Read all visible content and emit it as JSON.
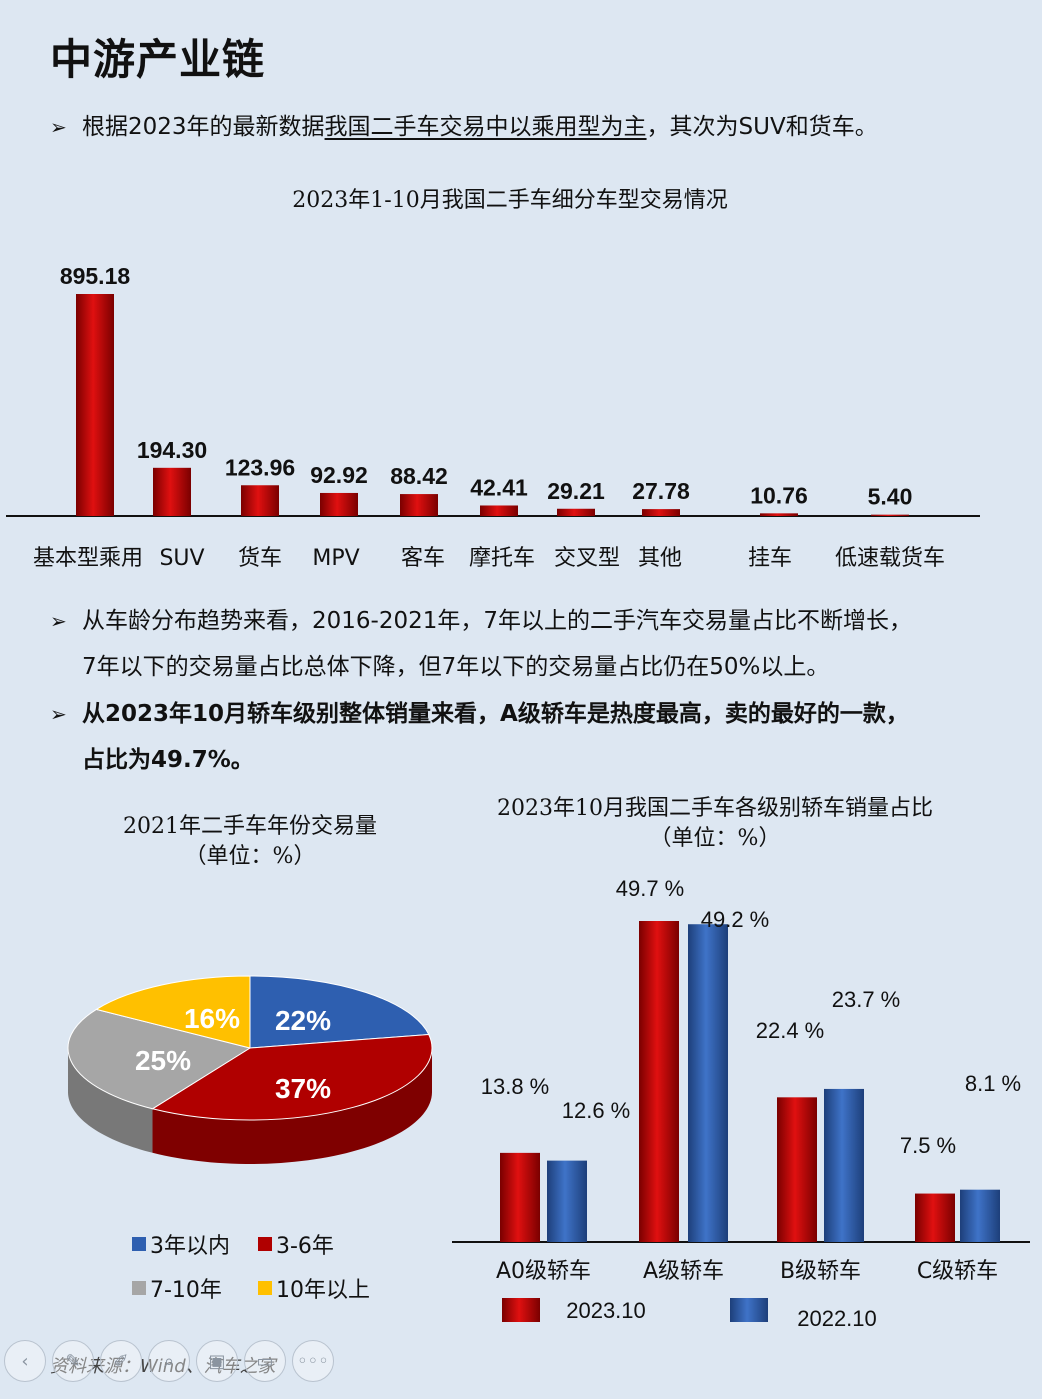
{
  "page": {
    "title": "中游产业链"
  },
  "bullets": {
    "b1": {
      "pre": "根据2023年的最新数据",
      "underline": "我国二手车交易中以乘用型为主",
      "post": "，其次为SUV和货车。"
    },
    "b2": {
      "line1": "从车龄分布趋势来看，2016-2021年，7年以上的二手汽车交易量占比不断增长，",
      "line2": "7年以下的交易量占比总体下降，但7年以下的交易量占比仍在50%以上。"
    },
    "b3": {
      "line1": "从2023年10月轿车级别整体销量来看，A级轿车是热度最高，卖的最好的一款，",
      "line2": "占比为49.7%。"
    }
  },
  "arrow_symbol": "➢",
  "charts": {
    "bar_title": "2023年1-10月我国二手车细分车型交易情况",
    "pie_title": "2021年二手车年份交易量",
    "pie_subtitle": "（单位：%）",
    "group_title": "2023年10月我国二手车各级别轿车销量占比",
    "group_subtitle": "（单位：%）"
  },
  "chart_data": [
    {
      "type": "bar",
      "title": "2023年1-10月我国二手车细分车型交易情况",
      "categories": [
        "基本型乘用",
        "SUV",
        "货车",
        "MPV",
        "客车",
        "摩托车",
        "交叉型",
        "其他",
        "挂车",
        "低速载货车"
      ],
      "values": [
        895.18,
        194.3,
        123.96,
        92.92,
        88.42,
        42.41,
        29.21,
        27.78,
        10.76,
        5.4
      ],
      "value_labels": [
        "895.18",
        "194.30",
        "123.96",
        "92.92",
        "88.42",
        "42.41",
        "29.21",
        "27.78",
        "10.76",
        "5.40"
      ],
      "color": "#c00000"
    },
    {
      "type": "pie",
      "title": "2021年二手车年份交易量",
      "subtitle": "（单位：%）",
      "slices": [
        {
          "label": "3年以内",
          "value": 22,
          "value_label": "22%",
          "color": "#2e5fb0"
        },
        {
          "label": "3-6年",
          "value": 37,
          "value_label": "37%",
          "color": "#b00000"
        },
        {
          "label": "7-10年",
          "value": 25,
          "value_label": "25%",
          "color": "#a6a6a6"
        },
        {
          "label": "10年以上",
          "value": 16,
          "value_label": "16%",
          "color": "#ffc000"
        }
      ]
    },
    {
      "type": "bar",
      "title": "2023年10月我国二手车各级别轿车销量占比",
      "subtitle": "（单位：%）",
      "categories": [
        "A0级轿车",
        "A级轿车",
        "B级轿车",
        "C级轿车"
      ],
      "series": [
        {
          "name": "2023.10",
          "values": [
            13.8,
            49.7,
            22.4,
            7.5
          ],
          "labels": [
            "13.8 %",
            "49.7 %",
            "22.4 %",
            "7.5 %"
          ],
          "color": "#c00000"
        },
        {
          "name": "2022.10",
          "values": [
            12.6,
            49.2,
            23.7,
            8.1
          ],
          "labels": [
            "12.6 %",
            "49.2 %",
            "23.7 %",
            "8.1 %"
          ],
          "color": "#2e5fb0"
        }
      ]
    }
  ],
  "footer": {
    "source": "资料来源：Wind、汽车之家"
  },
  "nav": {
    "prev": "‹",
    "more": "◦◦◦"
  }
}
